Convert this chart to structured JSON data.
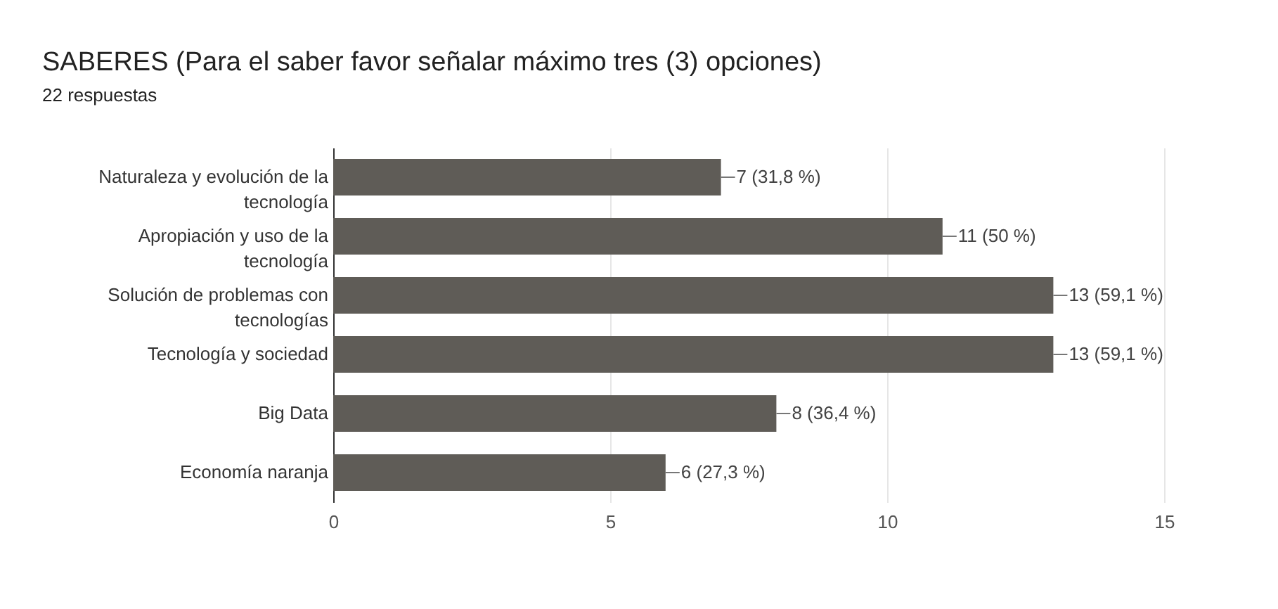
{
  "chart_data": {
    "type": "bar",
    "orientation": "horizontal",
    "title": "SABERES (Para el saber favor señalar máximo tres (3) opciones)",
    "subtitle": "22 respuestas",
    "categories": [
      "Naturaleza y evolución de la tecnología",
      "Apropiación y uso de la tecnología",
      "Solución de problemas con tecnologías",
      "Tecnología y sociedad",
      "Big Data",
      "Economía naranja"
    ],
    "values": [
      7,
      11,
      13,
      13,
      8,
      6
    ],
    "value_labels": [
      "7 (31,8 %)",
      "11 (50 %)",
      "13 (59,1 %)",
      "13 (59,1 %)",
      "8 (36,4 %)",
      "6 (27,3 %)"
    ],
    "color": "#5f5c57",
    "xlim": [
      0,
      15
    ],
    "xticks": [
      0,
      5,
      10,
      15
    ],
    "grid": "x"
  }
}
